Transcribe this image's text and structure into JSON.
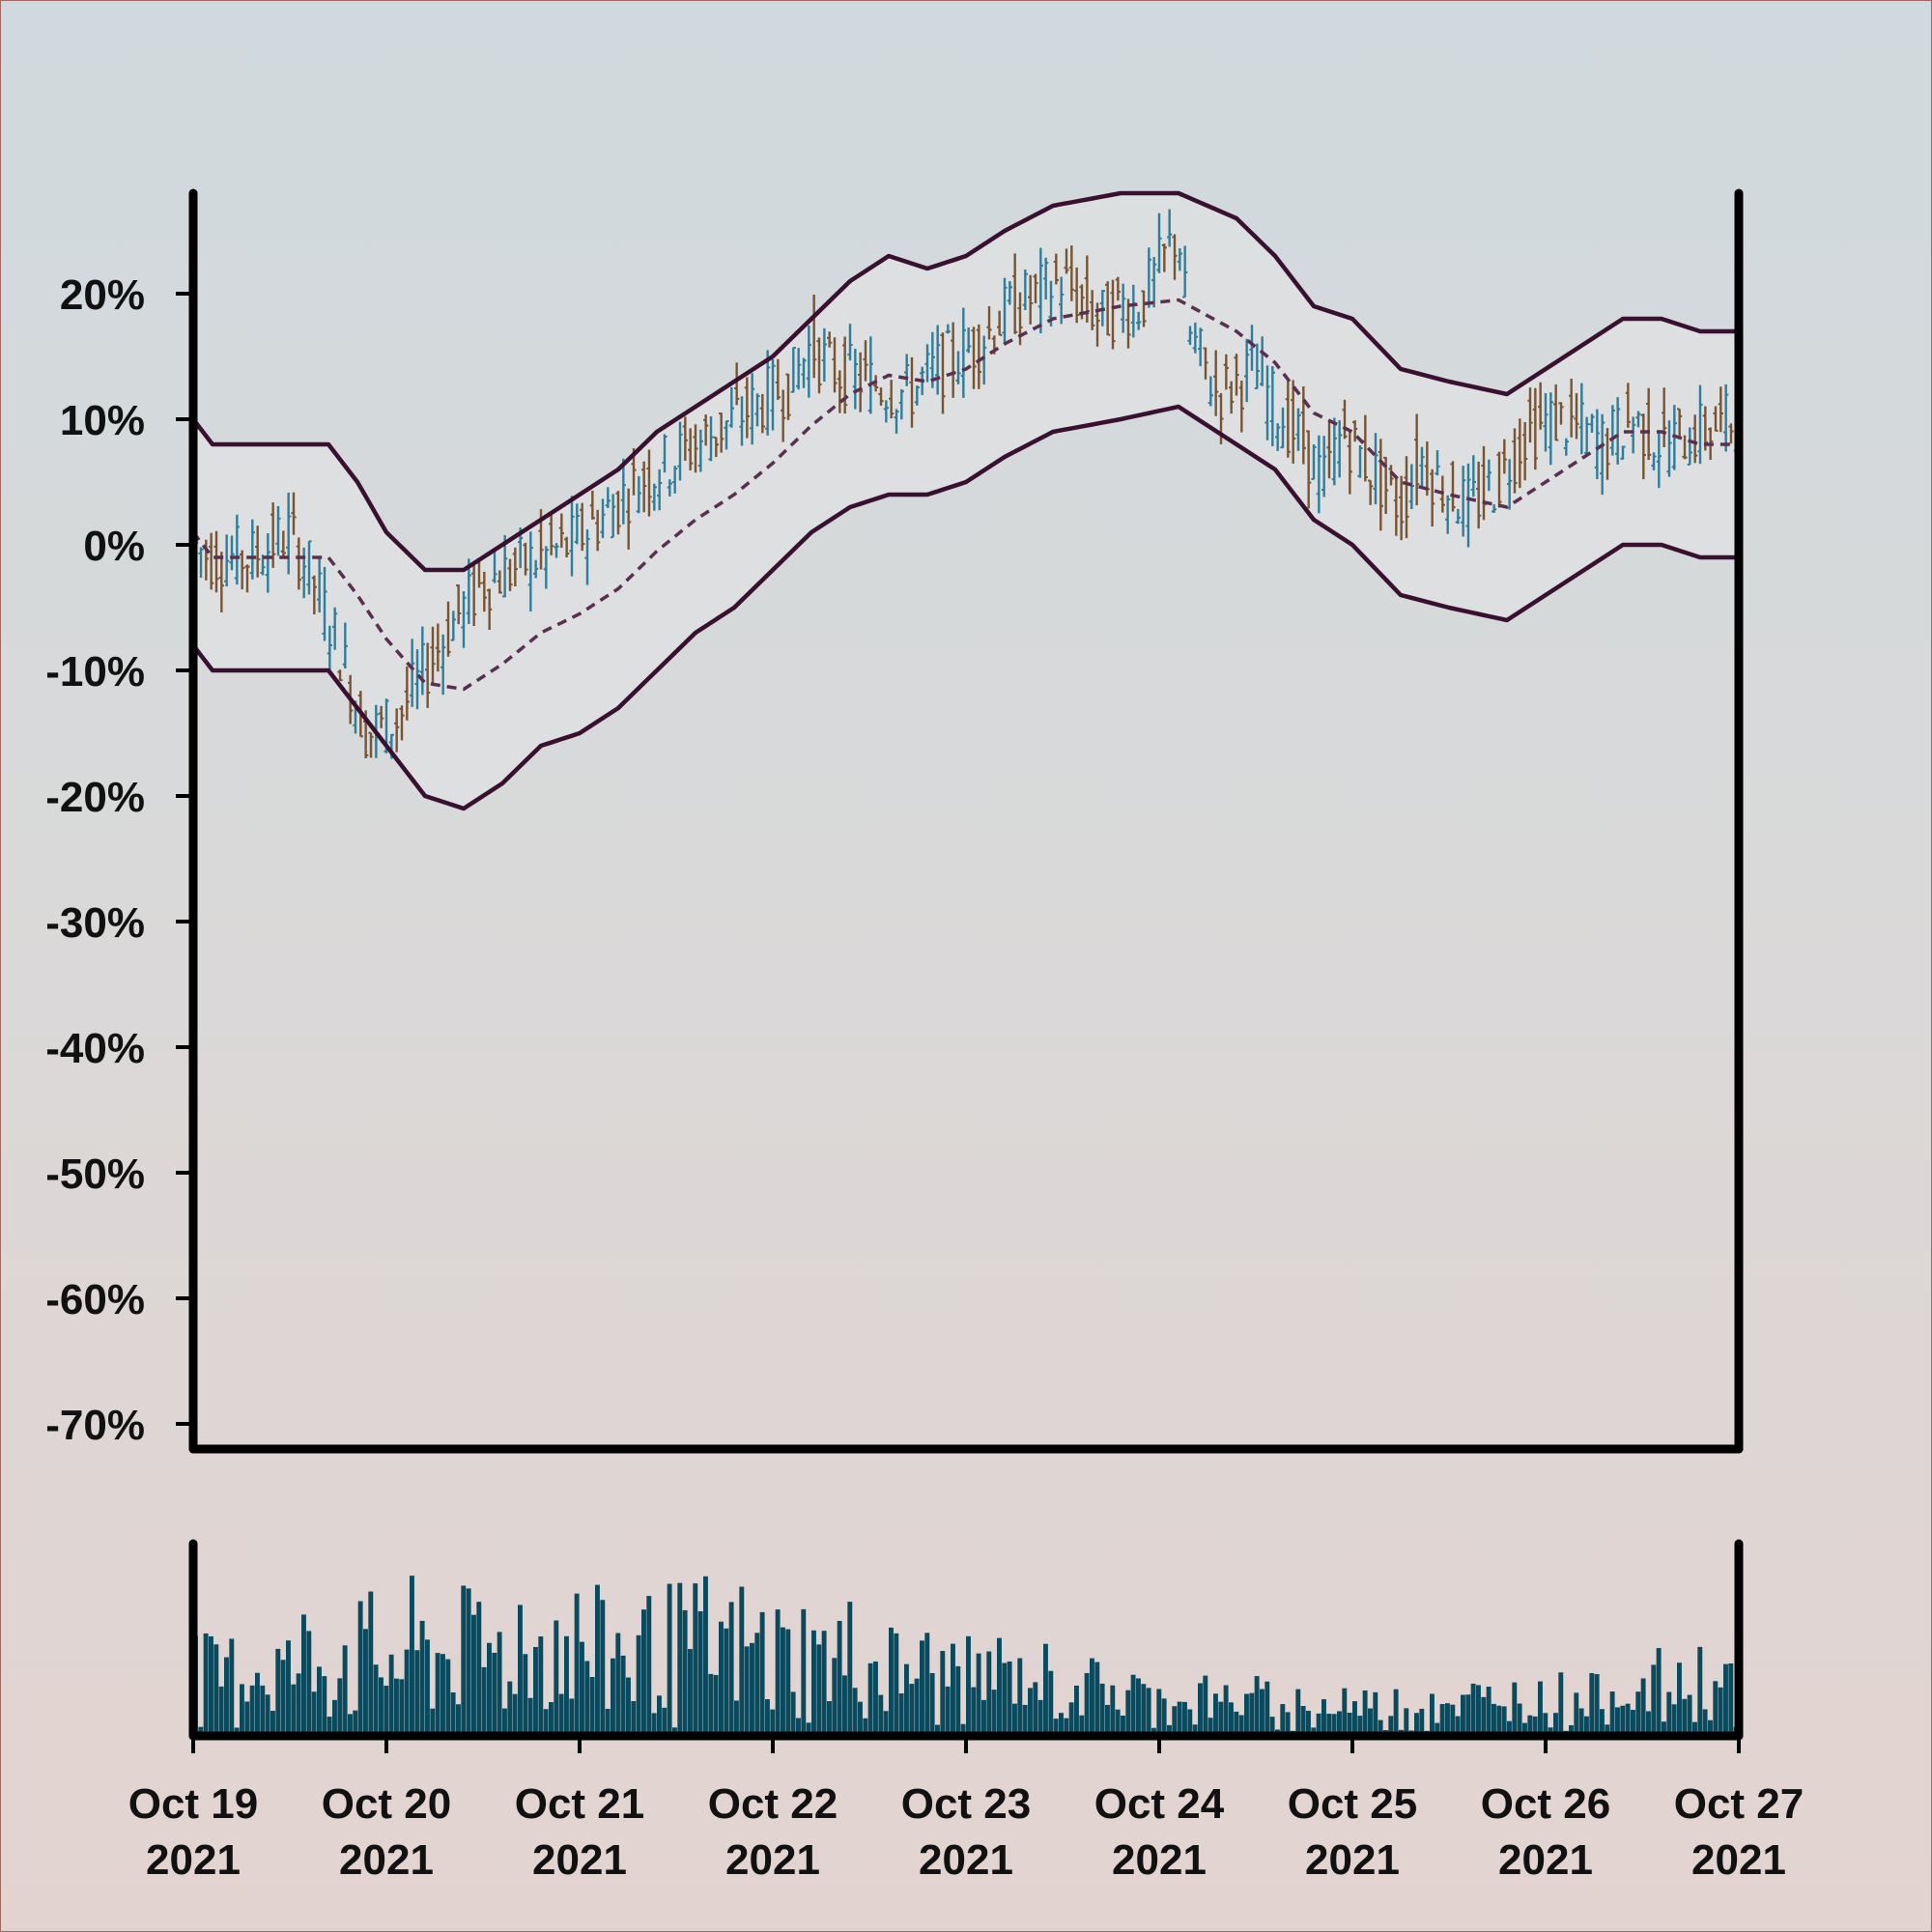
{
  "chart_data": {
    "type": "ohlc",
    "title": "",
    "xlabel": "",
    "ylabel": "",
    "ylim": [
      -72,
      28
    ],
    "yticks": [
      "20%",
      "10%",
      "0%",
      "-10%",
      "-20%",
      "-30%",
      "-40%",
      "-50%",
      "-60%",
      "-70%"
    ],
    "ytick_values": [
      20,
      10,
      0,
      -10,
      -20,
      -30,
      -40,
      -50,
      -60,
      -70
    ],
    "xticks": [
      {
        "line1": "Oct 19",
        "line2": "2021"
      },
      {
        "line1": "Oct 20",
        "line2": "2021"
      },
      {
        "line1": "Oct 21",
        "line2": "2021"
      },
      {
        "line1": "Oct 22",
        "line2": "2021"
      },
      {
        "line1": "Oct 23",
        "line2": "2021"
      },
      {
        "line1": "Oct 24",
        "line2": "2021"
      },
      {
        "line1": "Oct 25",
        "line2": "2021"
      },
      {
        "line1": "Oct 26",
        "line2": "2021"
      },
      {
        "line1": "Oct 27",
        "line2": "2021"
      }
    ],
    "xlim_days": [
      0,
      8
    ],
    "close_anchors": [
      [
        0.0,
        0
      ],
      [
        0.1,
        -1
      ],
      [
        0.3,
        -1
      ],
      [
        0.5,
        1
      ],
      [
        0.6,
        -2
      ],
      [
        0.75,
        -8
      ],
      [
        0.9,
        -15
      ],
      [
        1.05,
        -14
      ],
      [
        1.2,
        -10
      ],
      [
        1.35,
        -6
      ],
      [
        1.5,
        -3
      ],
      [
        1.65,
        -2
      ],
      [
        1.8,
        -1
      ],
      [
        1.95,
        0
      ],
      [
        2.1,
        2
      ],
      [
        2.3,
        5
      ],
      [
        2.5,
        7
      ],
      [
        2.7,
        9
      ],
      [
        2.9,
        11
      ],
      [
        3.1,
        13
      ],
      [
        3.2,
        16
      ],
      [
        3.3,
        14
      ],
      [
        3.5,
        13
      ],
      [
        3.7,
        12
      ],
      [
        3.85,
        14
      ],
      [
        4.05,
        16
      ],
      [
        4.25,
        19
      ],
      [
        4.5,
        21
      ],
      [
        4.7,
        18
      ],
      [
        4.8,
        19
      ],
      [
        4.9,
        19
      ],
      [
        5.1,
        25
      ],
      [
        5.15,
        17
      ],
      [
        5.3,
        12
      ],
      [
        5.5,
        14
      ],
      [
        5.6,
        11
      ],
      [
        5.75,
        8
      ],
      [
        5.85,
        5
      ],
      [
        5.95,
        9
      ],
      [
        6.1,
        6
      ],
      [
        6.25,
        3
      ],
      [
        6.35,
        7
      ],
      [
        6.45,
        5
      ],
      [
        6.6,
        3
      ],
      [
        6.75,
        5
      ],
      [
        6.9,
        9
      ],
      [
        7.05,
        10
      ],
      [
        7.2,
        9
      ],
      [
        7.3,
        8
      ],
      [
        7.45,
        10
      ],
      [
        7.6,
        8
      ],
      [
        7.8,
        9
      ],
      [
        8.0,
        10
      ]
    ],
    "band_anchors": [
      [
        0.0,
        10,
        -8
      ],
      [
        0.1,
        8,
        -10
      ],
      [
        0.3,
        8,
        -10
      ],
      [
        0.5,
        8,
        -10
      ],
      [
        0.7,
        8,
        -10
      ],
      [
        0.85,
        5,
        -13
      ],
      [
        1.0,
        1,
        -16
      ],
      [
        1.2,
        -2,
        -20
      ],
      [
        1.4,
        -2,
        -21
      ],
      [
        1.6,
        0,
        -19
      ],
      [
        1.8,
        2,
        -16
      ],
      [
        2.0,
        4,
        -15
      ],
      [
        2.2,
        6,
        -13
      ],
      [
        2.4,
        9,
        -10
      ],
      [
        2.6,
        11,
        -7
      ],
      [
        2.8,
        13,
        -5
      ],
      [
        3.0,
        15,
        -2
      ],
      [
        3.2,
        18,
        1
      ],
      [
        3.4,
        21,
        3
      ],
      [
        3.6,
        23,
        4
      ],
      [
        3.8,
        22,
        4
      ],
      [
        4.0,
        23,
        5
      ],
      [
        4.2,
        25,
        7
      ],
      [
        4.45,
        27,
        9
      ],
      [
        4.8,
        28,
        10
      ],
      [
        5.1,
        28,
        11
      ],
      [
        5.4,
        26,
        8
      ],
      [
        5.6,
        23,
        6
      ],
      [
        5.8,
        19,
        2
      ],
      [
        6.0,
        18,
        0
      ],
      [
        6.25,
        14,
        -4
      ],
      [
        6.5,
        13,
        -5
      ],
      [
        6.8,
        12,
        -6
      ],
      [
        7.0,
        14,
        -4
      ],
      [
        7.2,
        16,
        -2
      ],
      [
        7.4,
        18,
        0
      ],
      [
        7.6,
        18,
        0
      ],
      [
        7.8,
        17,
        -1
      ],
      [
        8.0,
        17,
        -1
      ]
    ],
    "series": [
      {
        "values_key": "ohlc",
        "up_color": "#2e7d9a",
        "down_color": "#7a5330"
      },
      {
        "values_key": "upper_band",
        "color": "#3a1030"
      },
      {
        "values_key": "moving_average",
        "color": "#5a3050",
        "style": "dashed"
      },
      {
        "values_key": "lower_band",
        "color": "#3a1030"
      },
      {
        "values_key": "volume",
        "color": "#0a4a5e"
      }
    ],
    "grid": false,
    "legend": "none"
  }
}
